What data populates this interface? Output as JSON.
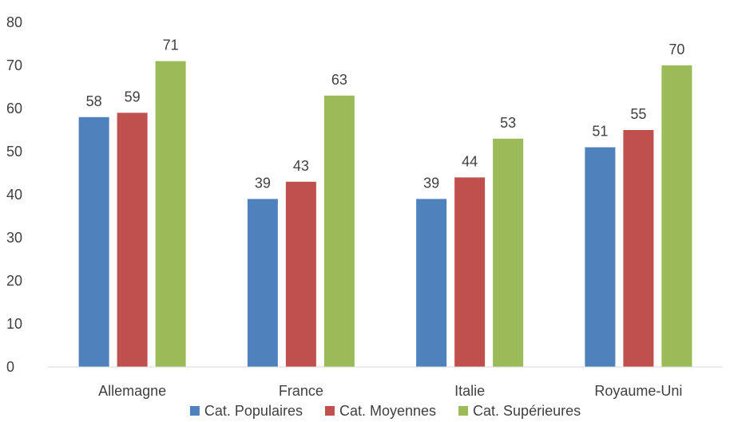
{
  "chart_data": {
    "type": "bar",
    "title": "",
    "xlabel": "",
    "ylabel": "",
    "ylim": [
      0,
      80
    ],
    "yticks": [
      0,
      10,
      20,
      30,
      40,
      50,
      60,
      70,
      80
    ],
    "grid": false,
    "legend_position": "bottom",
    "categories": [
      "Allemagne",
      "France",
      "Italie",
      "Royaume-Uni"
    ],
    "series": [
      {
        "name": "Cat. Populaires",
        "color": "#4f81bd",
        "values": [
          58,
          39,
          39,
          51
        ]
      },
      {
        "name": "Cat. Moyennes",
        "color": "#c0504d",
        "values": [
          59,
          43,
          44,
          55
        ]
      },
      {
        "name": "Cat. Supérieures",
        "color": "#9bbb59",
        "values": [
          71,
          63,
          53,
          70
        ]
      }
    ]
  }
}
